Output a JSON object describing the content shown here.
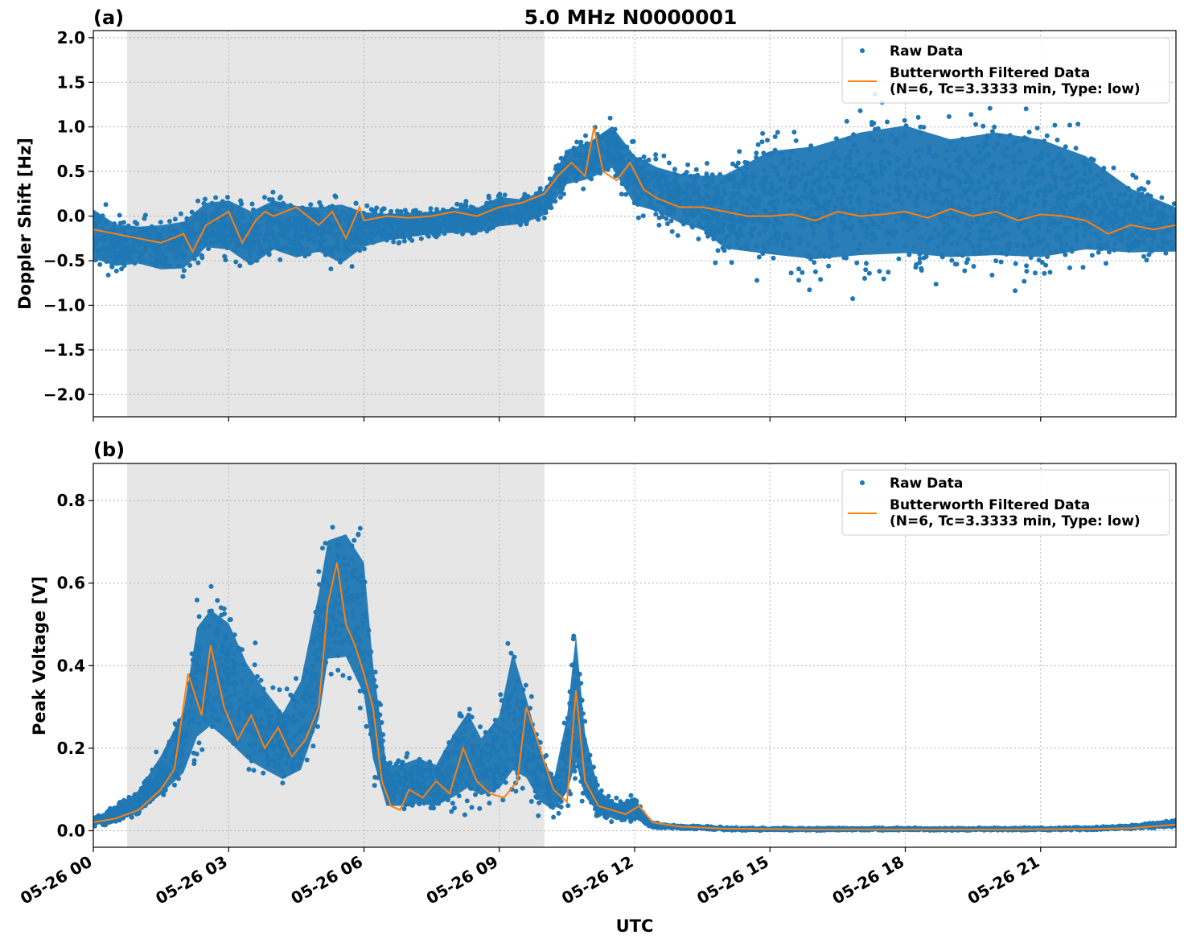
{
  "figure": {
    "title": "5.0 MHz N0000001",
    "xlabel": "UTC",
    "x_tick_labels": [
      "05-26 00",
      "05-26 03",
      "05-26 06",
      "05-26 09",
      "05-26 12",
      "05-26 15",
      "05-26 18",
      "05-26 21"
    ],
    "colors": {
      "raw": "#1f77b4",
      "filtered": "#ff7f0e",
      "shade": "#e6e6e6"
    }
  },
  "chart_data": [
    {
      "type": "scatter",
      "panel_label": "(a)",
      "ylabel": "Doppler Shift [Hz]",
      "x_unit": "hours UTC since 05-26 00:00",
      "xlim": [
        0,
        24
      ],
      "ylim": [
        -2.25,
        2.08
      ],
      "yticks": [
        2.0,
        1.5,
        1.0,
        0.5,
        0.0,
        -0.5,
        -1.0,
        -1.5,
        -2.0
      ],
      "ytick_labels": [
        "2.0",
        "1.5",
        "1.0",
        "0.5",
        "0.0",
        "−0.5",
        "−1.0",
        "−1.5",
        "−2.0"
      ],
      "shaded_region": [
        0.75,
        10.0
      ],
      "grid": true,
      "legend_position": "top-right",
      "series": [
        {
          "name": "Raw Data",
          "kind": "scatter-band",
          "hours": [
            0,
            0.5,
            1,
            1.5,
            2,
            2.5,
            3,
            3.5,
            4,
            4.5,
            5,
            5.5,
            6,
            6.5,
            7,
            7.5,
            8,
            8.5,
            9,
            9.5,
            10,
            10.5,
            11,
            11.5,
            12,
            12.5,
            13,
            13.5,
            14,
            15,
            16,
            17,
            18,
            19,
            20,
            21,
            22,
            23,
            24
          ],
          "upper": [
            0.3,
            0.1,
            0.05,
            0.1,
            0.15,
            0.35,
            0.4,
            0.3,
            0.4,
            0.35,
            0.3,
            0.4,
            0.2,
            0.15,
            0.15,
            0.15,
            0.2,
            0.2,
            0.35,
            0.3,
            0.4,
            0.9,
            1.0,
            1.2,
            0.9,
            0.75,
            0.7,
            0.7,
            0.8,
            1.2,
            1.3,
            1.5,
            1.6,
            1.4,
            1.5,
            1.4,
            1.1,
            0.6,
            0.3
          ],
          "lower": [
            -0.7,
            -0.75,
            -0.7,
            -0.8,
            -0.8,
            -0.55,
            -0.6,
            -0.8,
            -0.6,
            -0.7,
            -0.6,
            -0.8,
            -0.5,
            -0.4,
            -0.35,
            -0.3,
            -0.3,
            -0.3,
            -0.25,
            -0.2,
            -0.1,
            0.2,
            0.25,
            0.35,
            -0.1,
            -0.15,
            -0.3,
            -0.4,
            -0.7,
            -0.9,
            -1.0,
            -1.0,
            -1.0,
            -1.0,
            -1.0,
            -1.0,
            -0.8,
            -0.7,
            -0.6
          ]
        },
        {
          "name": "Butterworth Filtered Data\n(N=6, Tc=3.3333 min, Type: low)",
          "kind": "line",
          "hours": [
            0,
            0.5,
            1,
            1.5,
            2,
            2.2,
            2.5,
            3,
            3.3,
            3.6,
            3.8,
            4,
            4.5,
            5,
            5.3,
            5.6,
            5.9,
            6,
            6.5,
            7,
            7.5,
            8,
            8.5,
            9,
            9.5,
            10,
            10.3,
            10.6,
            10.9,
            11.1,
            11.3,
            11.6,
            11.9,
            12.2,
            12.5,
            13,
            13.5,
            14,
            14.5,
            15,
            15.5,
            16,
            16.5,
            17,
            17.5,
            18,
            18.5,
            19,
            19.5,
            20,
            20.5,
            21,
            21.5,
            22,
            22.5,
            23,
            23.5,
            24
          ],
          "values": [
            -0.15,
            -0.2,
            -0.25,
            -0.3,
            -0.2,
            -0.4,
            -0.1,
            0.05,
            -0.3,
            -0.05,
            0.05,
            0.0,
            0.1,
            -0.1,
            0.05,
            -0.25,
            0.1,
            -0.05,
            0.0,
            -0.02,
            0.0,
            0.05,
            0.0,
            0.1,
            0.15,
            0.25,
            0.45,
            0.6,
            0.45,
            1.0,
            0.5,
            0.4,
            0.6,
            0.3,
            0.2,
            0.1,
            0.1,
            0.05,
            0.0,
            0.0,
            0.02,
            -0.05,
            0.05,
            0.0,
            0.02,
            0.05,
            -0.02,
            0.08,
            0.0,
            0.05,
            -0.05,
            0.02,
            0.0,
            -0.05,
            -0.2,
            -0.1,
            -0.15,
            -0.1
          ]
        }
      ]
    },
    {
      "type": "scatter",
      "panel_label": "(b)",
      "ylabel": "Peak Voltage [V]",
      "x_unit": "hours UTC since 05-26 00:00",
      "xlim": [
        0,
        24
      ],
      "ylim": [
        -0.04,
        0.89
      ],
      "yticks": [
        0.8,
        0.6,
        0.4,
        0.2,
        0.0
      ],
      "ytick_labels": [
        "0.8",
        "0.6",
        "0.4",
        "0.2",
        "0.0"
      ],
      "shaded_region": [
        0.75,
        10.0
      ],
      "grid": true,
      "legend_position": "top-right",
      "series": [
        {
          "name": "Raw Data",
          "kind": "scatter-band",
          "hours": [
            0,
            0.5,
            1,
            1.5,
            2,
            2.3,
            2.6,
            3,
            3.4,
            3.8,
            4.2,
            4.6,
            5,
            5.2,
            5.6,
            6,
            6.2,
            6.5,
            6.8,
            7.2,
            7.6,
            8,
            8.3,
            8.6,
            9,
            9.3,
            9.6,
            9.9,
            10.2,
            10.5,
            10.7,
            10.9,
            11.2,
            11.6,
            12,
            12.3,
            12.6,
            13,
            14,
            15,
            16,
            18,
            20,
            22,
            23,
            24
          ],
          "upper": [
            0.04,
            0.07,
            0.12,
            0.22,
            0.35,
            0.6,
            0.65,
            0.62,
            0.5,
            0.42,
            0.35,
            0.45,
            0.7,
            0.82,
            0.84,
            0.78,
            0.5,
            0.2,
            0.2,
            0.22,
            0.2,
            0.3,
            0.36,
            0.28,
            0.35,
            0.55,
            0.4,
            0.25,
            0.15,
            0.35,
            0.6,
            0.3,
            0.12,
            0.08,
            0.1,
            0.03,
            0.02,
            0.015,
            0.01,
            0.008,
            0.008,
            0.008,
            0.008,
            0.01,
            0.015,
            0.03
          ],
          "lower": [
            0.005,
            0.01,
            0.02,
            0.05,
            0.08,
            0.12,
            0.14,
            0.1,
            0.08,
            0.07,
            0.06,
            0.06,
            0.15,
            0.3,
            0.3,
            0.2,
            0.08,
            0.02,
            0.02,
            0.02,
            0.02,
            0.02,
            0.03,
            0.03,
            0.03,
            0.03,
            0.05,
            0.02,
            0.02,
            0.02,
            0.04,
            0.02,
            0.02,
            0.01,
            0.01,
            0.005,
            0.003,
            0.003,
            0.0,
            0.0,
            0.0,
            0.0,
            0.0,
            0.0,
            0.003,
            0.005
          ]
        },
        {
          "name": "Butterworth Filtered Data\n(N=6, Tc=3.3333 min, Type: low)",
          "kind": "line",
          "hours": [
            0,
            0.5,
            1,
            1.5,
            1.8,
            2.1,
            2.4,
            2.6,
            2.9,
            3.2,
            3.5,
            3.8,
            4.1,
            4.4,
            4.7,
            5.0,
            5.2,
            5.4,
            5.6,
            5.8,
            6.0,
            6.2,
            6.4,
            6.6,
            6.8,
            7.0,
            7.3,
            7.6,
            7.9,
            8.2,
            8.5,
            8.8,
            9.1,
            9.4,
            9.6,
            9.9,
            10.2,
            10.5,
            10.7,
            10.9,
            11.2,
            11.5,
            11.8,
            12.1,
            12.4,
            13,
            14,
            16,
            18,
            20,
            22,
            23,
            24
          ],
          "values": [
            0.02,
            0.03,
            0.05,
            0.1,
            0.15,
            0.38,
            0.28,
            0.45,
            0.3,
            0.22,
            0.28,
            0.2,
            0.25,
            0.18,
            0.22,
            0.3,
            0.55,
            0.65,
            0.5,
            0.45,
            0.38,
            0.3,
            0.12,
            0.06,
            0.05,
            0.1,
            0.08,
            0.12,
            0.09,
            0.2,
            0.12,
            0.09,
            0.08,
            0.12,
            0.3,
            0.2,
            0.1,
            0.07,
            0.34,
            0.12,
            0.06,
            0.05,
            0.04,
            0.06,
            0.02,
            0.01,
            0.005,
            0.003,
            0.003,
            0.003,
            0.004,
            0.006,
            0.015
          ]
        }
      ]
    }
  ]
}
